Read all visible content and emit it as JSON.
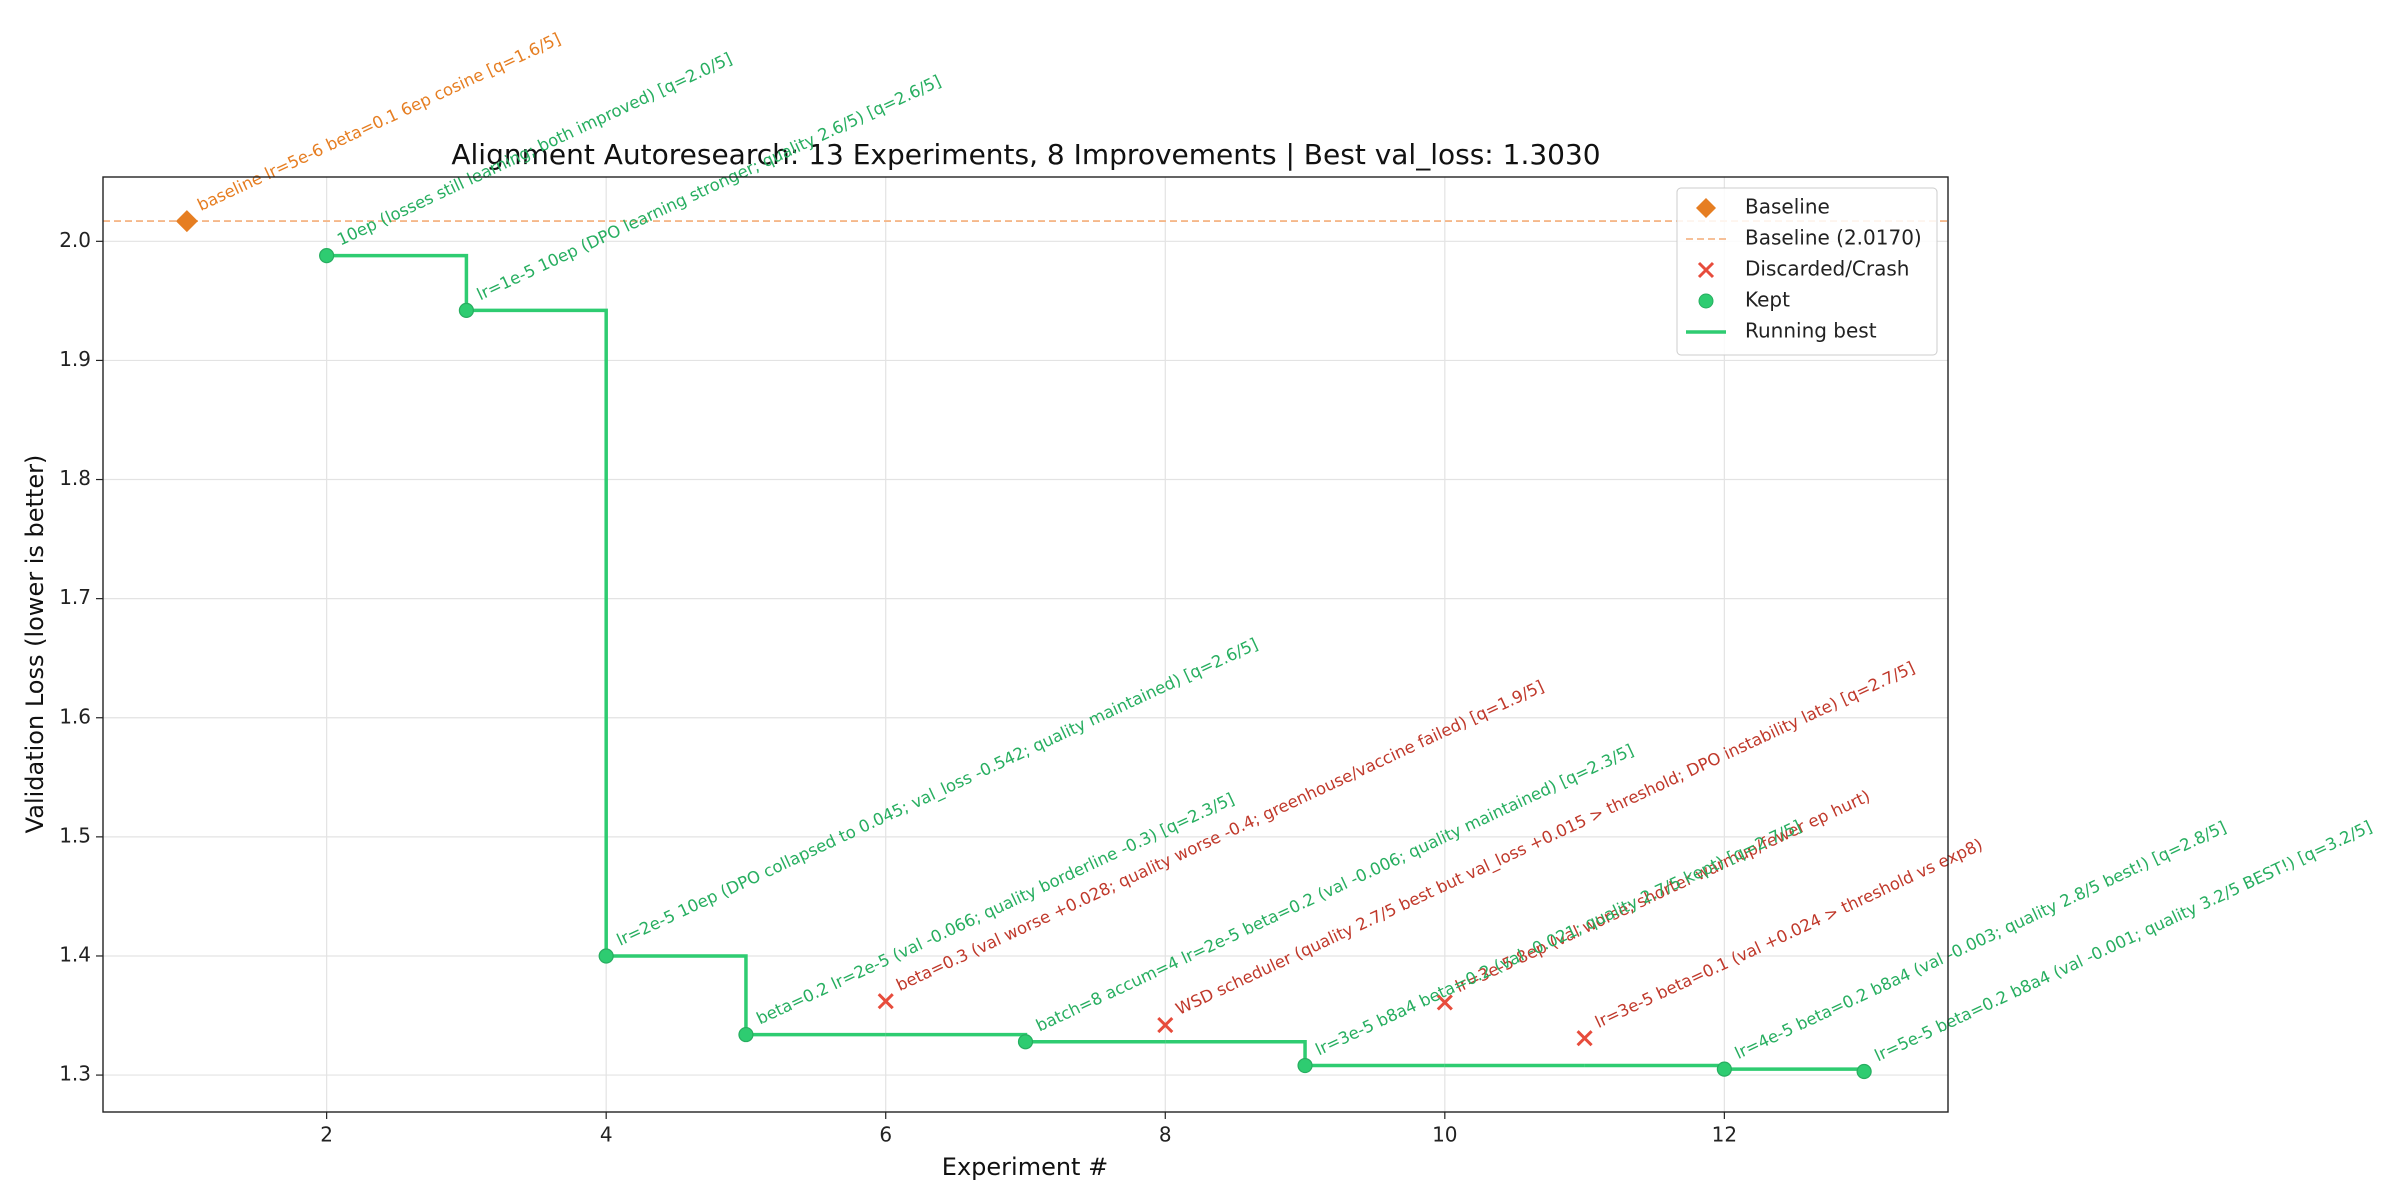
{
  "chart_data": {
    "type": "scatter",
    "title": "Alignment Autoresearch: 13 Experiments, 8 Improvements | Best val_loss: 1.3030",
    "x_label": "Experiment #",
    "y_label": "Validation Loss (lower is better)",
    "xlim": [
      0.4,
      13.6
    ],
    "ylim": [
      1.269,
      2.054
    ],
    "xticks": [
      2,
      4,
      6,
      8,
      10,
      12
    ],
    "yticks": [
      1.3,
      1.4,
      1.5,
      1.6,
      1.7,
      1.8,
      1.9,
      {
        "value": 2,
        "label": "2.0"
      }
    ],
    "grid": true,
    "legend": "upper right",
    "series": [
      {
        "name": "Baseline",
        "kind": "diamond",
        "color": "#e67e22",
        "x": [
          1
        ],
        "values": [
          2.017
        ],
        "labels": [
          "baseline lr=5e-6 beta=0.1 6ep cosine  [q=1.6/5]"
        ]
      },
      {
        "name": "Baseline (2.0170)",
        "kind": "hline",
        "color": "#f5b88a",
        "values": [
          2.017
        ]
      },
      {
        "name": "Discarded/Crash",
        "kind": "cross",
        "color": "#e74c3c",
        "label_color": "#c0392b",
        "x": [
          6,
          8,
          10,
          11
        ],
        "values": [
          1.362,
          1.342,
          1.361,
          1.331
        ],
        "labels": [
          "beta=0.3 (val worse +0.028; quality worse -0.4; greenhouse/vaccine failed)  [q=1.9/5]",
          "WSD scheduler (quality 2.7/5 best but val_loss +0.015 > threshold; DPO instability late)  [q=2.7/5]",
          "lr=3e-5 8ep (val worse; shorter warmup/fewer ep hurt)",
          "lr=3e-5 beta=0.1 (val +0.024 > threshold vs exp8)"
        ]
      },
      {
        "name": "Kept",
        "kind": "circle",
        "color": "#2ecc71",
        "label_color": "#27ae60",
        "x": [
          2,
          3,
          4,
          5,
          7,
          9,
          12,
          13
        ],
        "values": [
          1.988,
          1.942,
          1.4,
          1.334,
          1.328,
          1.308,
          1.305,
          1.303
        ],
        "labels": [
          "10ep (losses still learning; both improved)  [q=2.0/5]",
          "lr=1e-5 10ep (DPO learning stronger; quality 2.6/5)  [q=2.6/5]",
          "lr=2e-5 10ep (DPO collapsed to 0.045; val_loss -0.542; quality maintained)  [q=2.6/5]",
          "beta=0.2 lr=2e-5 (val -0.066; quality borderline -0.3)  [q=2.3/5]",
          "batch=8 accum=4 lr=2e-5 beta=0.2 (val -0.006; quality maintained)  [q=2.3/5]",
          "lr=3e-5 b8a4 beta=0.2 (val -0.021; quality 2.7/5 kept)  [q=2.7/5]",
          "lr=4e-5 beta=0.2 b8a4 (val -0.003; quality 2.8/5 best!)  [q=2.8/5]",
          "lr=5e-5 beta=0.2 b8a4 (val -0.001; quality 3.2/5 BEST!)  [q=3.2/5]"
        ]
      },
      {
        "name": "Running best",
        "kind": "step",
        "color": "#2ecc71",
        "x": [
          2,
          3,
          4,
          5,
          6,
          7,
          8,
          9,
          10,
          11,
          12,
          13
        ],
        "values": [
          1.988,
          1.942,
          1.4,
          1.334,
          1.334,
          1.328,
          1.328,
          1.308,
          1.308,
          1.308,
          1.305,
          1.303
        ]
      }
    ]
  }
}
